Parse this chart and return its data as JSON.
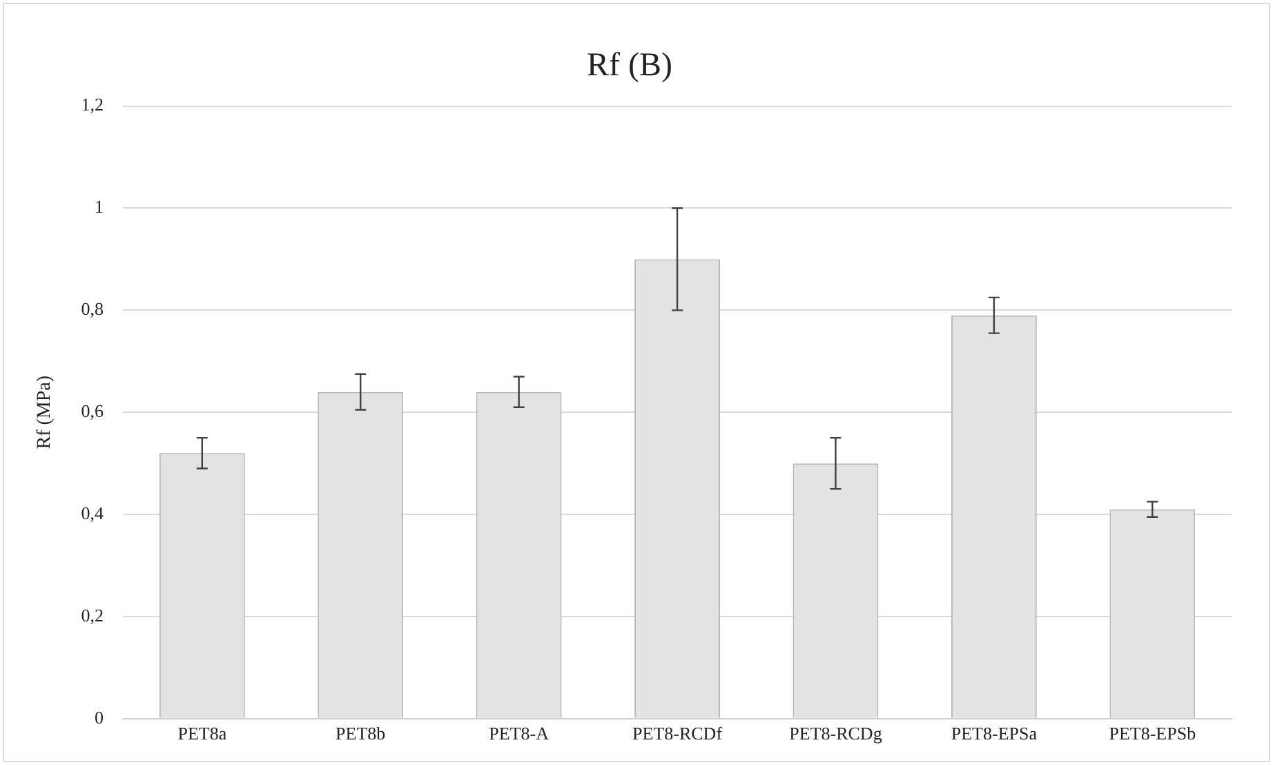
{
  "chart_data": {
    "type": "bar",
    "title": "Rf (B)",
    "ylabel": "Rf (MPa)",
    "categories": [
      "PET8a",
      "PET8b",
      "PET8-A",
      "PET8-RCDf",
      "PET8-RCDg",
      "PET8-EPSa",
      "PET8-EPSb"
    ],
    "values": [
      0.52,
      0.64,
      0.64,
      0.9,
      0.5,
      0.79,
      0.41
    ],
    "errors": [
      0.03,
      0.035,
      0.03,
      0.1,
      0.05,
      0.035,
      0.015
    ],
    "color": "#e3e3e3",
    "ylim": [
      0,
      1.2
    ],
    "yticks": [
      0,
      {
        "value": 0.2,
        "label": "0,2"
      },
      {
        "value": 0.4,
        "label": "0,4"
      },
      {
        "value": 0.6,
        "label": "0,6"
      },
      {
        "value": 0.8,
        "label": "0,8"
      },
      1,
      {
        "value": 1.2,
        "label": "1,2"
      }
    ],
    "grid": "y"
  }
}
